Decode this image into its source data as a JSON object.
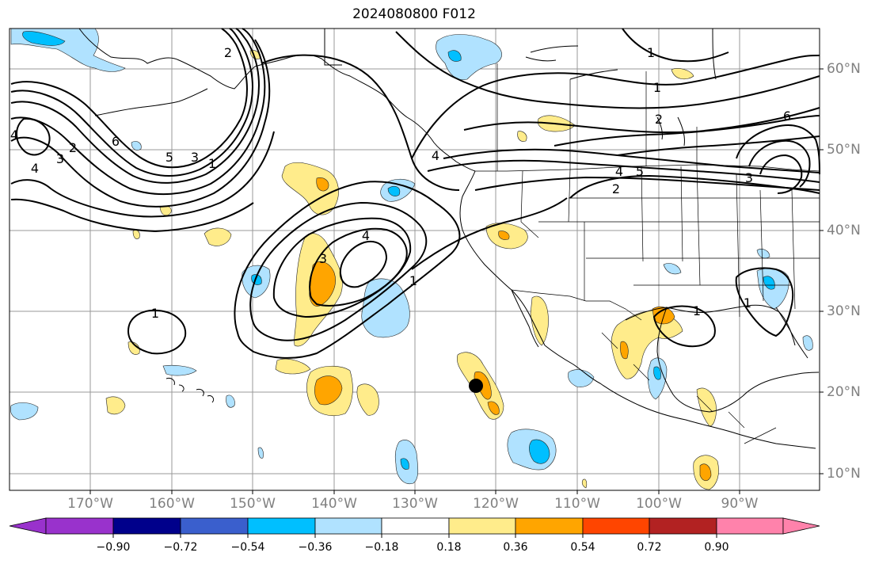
{
  "title": "2024080800 F012",
  "map": {
    "lat_labels": [
      "60°N",
      "50°N",
      "40°N",
      "30°N",
      "20°N",
      "10°N"
    ],
    "lon_labels": [
      "170°W",
      "160°W",
      "150°W",
      "140°W",
      "130°W",
      "120°W",
      "110°W",
      "100°W",
      "90°W"
    ],
    "contour_labels": [
      "1",
      "2",
      "3",
      "4",
      "5",
      "6"
    ],
    "marker": "storm-center-dot"
  },
  "colorbar": {
    "ticks": [
      "−0.90",
      "−0.72",
      "−0.54",
      "−0.36",
      "−0.18",
      "0.18",
      "0.36",
      "0.54",
      "0.72",
      "0.90"
    ],
    "colors": [
      "#9932cc",
      "#00008b",
      "#3a5fcd",
      "#00bfff",
      "#b0e2ff",
      "#ffffff",
      "#ffec8b",
      "#ffa500",
      "#ff4500",
      "#b22222",
      "#ff82ab"
    ]
  }
}
